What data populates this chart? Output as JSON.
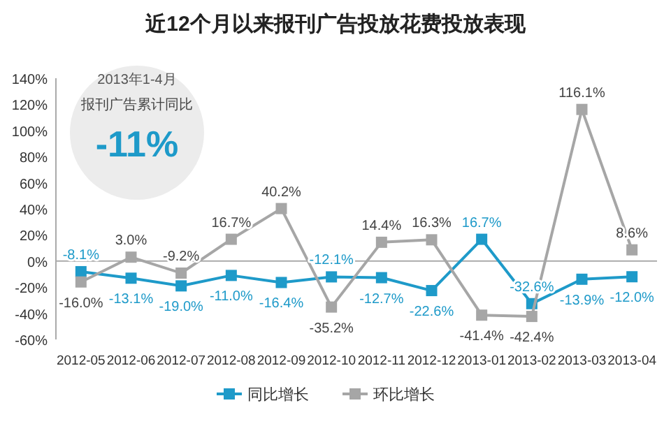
{
  "chart_data": {
    "type": "line",
    "title": "近12个月以来报刊广告投放花费投放表现",
    "categories": [
      "2012-05",
      "2012-06",
      "2012-07",
      "2012-08",
      "2012-09",
      "2012-10",
      "2012-11",
      "2012-12",
      "2013-01",
      "2013-02",
      "2013-03",
      "2013-04"
    ],
    "series": [
      {
        "name": "同比增长",
        "color": "#1e9ac9",
        "values": [
          -8.1,
          -13.1,
          -19.0,
          -11.0,
          -16.4,
          -12.1,
          -12.7,
          -22.6,
          16.7,
          -32.6,
          -13.9,
          -12.0
        ],
        "value_labels": [
          "-8.1%",
          "-13.1%",
          "-19.0%",
          "-11.0%",
          "-16.4%",
          "-12.1%",
          "-12.7%",
          "-22.6%",
          "16.7%",
          "-32.6%",
          "-13.9%",
          "-12.0%"
        ]
      },
      {
        "name": "环比增长",
        "color": "#a6a6a6",
        "values": [
          -16.0,
          3.0,
          -9.2,
          16.7,
          40.2,
          -35.2,
          14.4,
          16.3,
          -41.4,
          -42.4,
          116.1,
          8.6
        ],
        "value_labels": [
          "-16.0%",
          "3.0%",
          "-9.2%",
          "16.7%",
          "40.2%",
          "-35.2%",
          "14.4%",
          "16.3%",
          "-41.4%",
          "-42.4%",
          "116.1%",
          "8.6%"
        ]
      }
    ],
    "ylim": [
      -60,
      140
    ],
    "yticks": [
      {
        "value": -60,
        "label": "-60%"
      },
      {
        "value": -40,
        "label": "-40%"
      },
      {
        "value": -20,
        "label": "-20%"
      },
      {
        "value": 0,
        "label": "0%"
      },
      {
        "value": 20,
        "label": "20%"
      },
      {
        "value": 40,
        "label": "40%"
      },
      {
        "value": 60,
        "label": "60%"
      },
      {
        "value": 80,
        "label": "80%"
      },
      {
        "value": 100,
        "label": "100%"
      },
      {
        "value": 120,
        "label": "120%"
      },
      {
        "value": 140,
        "label": "140%"
      }
    ],
    "annotations": [
      "2013年1-4月",
      "报刊广告累计同比",
      "-11%"
    ],
    "legend": "bottom",
    "marker": "square"
  }
}
